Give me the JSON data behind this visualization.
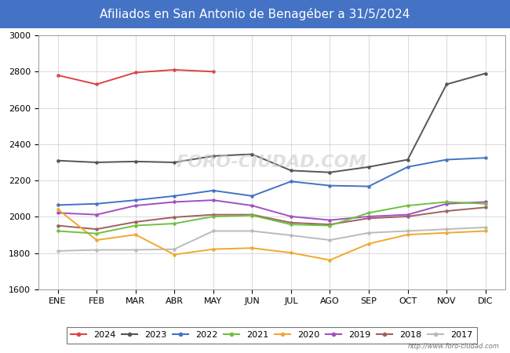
{
  "title": "Afiliados en San Antonio de Benagéber a 31/5/2024",
  "title_bg_color": "#4472c4",
  "title_text_color": "white",
  "ylim": [
    1600,
    3000
  ],
  "yticks": [
    1600,
    1800,
    2000,
    2200,
    2400,
    2600,
    2800,
    3000
  ],
  "months": [
    "ENE",
    "FEB",
    "MAR",
    "ABR",
    "MAY",
    "JUN",
    "JUL",
    "AGO",
    "SEP",
    "OCT",
    "NOV",
    "DIC"
  ],
  "watermark": "FORO-CIUDAD.COM",
  "url": "http://www.foro-ciudad.com",
  "series": {
    "2024": {
      "color": "#dd4444",
      "data": [
        2780,
        2730,
        2795,
        2810,
        2800,
        null,
        null,
        null,
        null,
        null,
        null,
        null
      ]
    },
    "2023": {
      "color": "#555555",
      "data": [
        2310,
        2300,
        2305,
        2300,
        2335,
        2345,
        2255,
        2245,
        2275,
        2315,
        2730,
        2790
      ]
    },
    "2022": {
      "color": "#4472c4",
      "data": [
        2065,
        2072,
        2092,
        2115,
        2145,
        2115,
        2195,
        2172,
        2168,
        2275,
        2315,
        2325
      ]
    },
    "2021": {
      "color": "#70c040",
      "data": [
        1922,
        1908,
        1952,
        1963,
        2002,
        2008,
        1958,
        1952,
        2022,
        2062,
        2082,
        2072
      ]
    },
    "2020": {
      "color": "#f0a830",
      "data": [
        2042,
        1872,
        1902,
        1792,
        1822,
        1828,
        1802,
        1762,
        1852,
        1902,
        1912,
        1922
      ]
    },
    "2019": {
      "color": "#a050c0",
      "data": [
        2022,
        2012,
        2062,
        2082,
        2092,
        2062,
        2002,
        1982,
        2002,
        2012,
        2072,
        2082
      ]
    },
    "2018": {
      "color": "#a06060",
      "data": [
        1952,
        1932,
        1972,
        1998,
        2012,
        2012,
        1968,
        1958,
        1992,
        2002,
        2032,
        2052
      ]
    },
    "2017": {
      "color": "#bbbbbb",
      "data": [
        1812,
        1818,
        1818,
        1822,
        1922,
        1922,
        1898,
        1872,
        1912,
        1922,
        1932,
        1942
      ]
    }
  },
  "legend_order": [
    "2024",
    "2023",
    "2022",
    "2021",
    "2020",
    "2019",
    "2018",
    "2017"
  ]
}
